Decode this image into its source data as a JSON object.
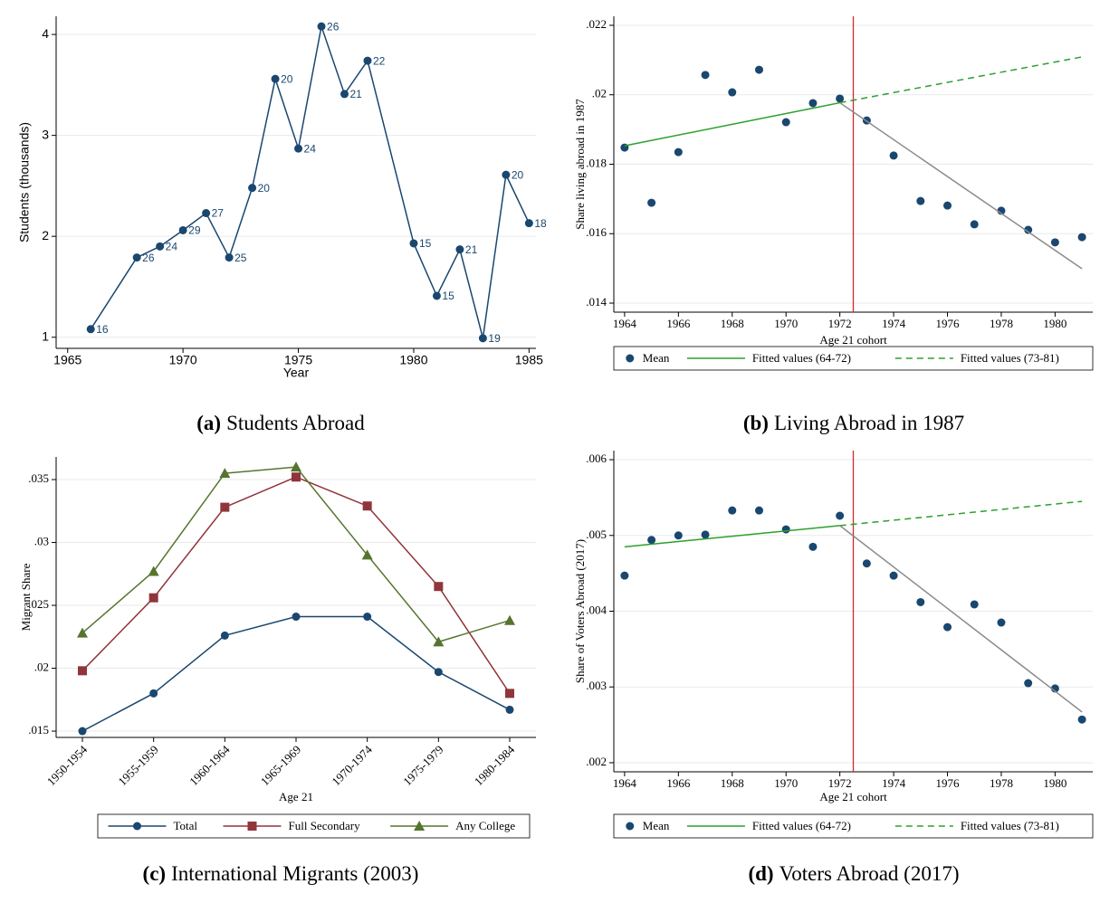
{
  "chart_data": [
    {
      "type": "line",
      "panel_label": "(a)",
      "caption": "Students Abroad",
      "xlabel": "Year",
      "ylabel": "Students (thousands)",
      "xlim": [
        1964.5,
        1985.3
      ],
      "ylim": [
        0.89,
        4.18
      ],
      "xticks": [
        1965,
        1970,
        1975,
        1980,
        1985
      ],
      "yticks": [
        1,
        2,
        3,
        4
      ],
      "grid": true,
      "series": [
        {
          "color": "#1a476f",
          "mode": "lines+markers",
          "marker": "circle",
          "x": [
            1966,
            1968,
            1969,
            1970,
            1971,
            1972,
            1973,
            1974,
            1975,
            1976,
            1977,
            1978,
            1980,
            1981,
            1982,
            1983,
            1984,
            1985
          ],
          "values": [
            1.08,
            1.79,
            1.9,
            2.06,
            2.23,
            1.79,
            2.48,
            3.56,
            2.87,
            4.08,
            3.41,
            3.74,
            1.93,
            1.41,
            1.87,
            0.99,
            2.61,
            2.13
          ],
          "point_labels": [
            16,
            26,
            24,
            29,
            27,
            25,
            20,
            20,
            24,
            26,
            21,
            22,
            15,
            15,
            21,
            19,
            20,
            18
          ]
        }
      ]
    },
    {
      "type": "scatter",
      "panel_label": "(b)",
      "caption": "Living Abroad in 1987",
      "xlabel": "Age 21 cohort",
      "ylabel": "Share living abroad in 1987",
      "xlim": [
        1963.6,
        1981.4
      ],
      "ylim": [
        0.01374,
        0.02226
      ],
      "xticks": [
        1964,
        1966,
        1968,
        1970,
        1972,
        1974,
        1976,
        1978,
        1980
      ],
      "yticks": [
        {
          "value": 0.014,
          "label": ".014"
        },
        {
          "value": 0.016,
          "label": ".016"
        },
        {
          "value": 0.018,
          "label": ".018"
        },
        {
          "value": 0.02,
          "label": ".02"
        },
        {
          "value": 0.022,
          "label": ".022"
        }
      ],
      "grid": true,
      "vline": 1972.5,
      "vline_color": "#d62728",
      "legend": "bottom",
      "series": [
        {
          "name": "Mean",
          "color": "#1a476f",
          "mode": "markers",
          "marker": "circle",
          "x": [
            1964,
            1965,
            1966,
            1967,
            1968,
            1969,
            1970,
            1971,
            1972,
            1973,
            1974,
            1975,
            1976,
            1977,
            1978,
            1979,
            1980,
            1981
          ],
          "values": [
            0.01848,
            0.01689,
            0.01835,
            0.02057,
            0.02007,
            0.02072,
            0.01921,
            0.01976,
            0.01989,
            0.01926,
            0.01825,
            0.01694,
            0.01681,
            0.01627,
            0.01666,
            0.01611,
            0.01575,
            0.0159
          ]
        },
        {
          "name": "Fitted values (64-72)",
          "color": "#2ca02c",
          "mode": "lines",
          "x": [
            1964,
            1972
          ],
          "values": [
            0.01853,
            0.01977
          ]
        },
        {
          "name": "Fitted values (73-81)",
          "color": "#2ca02c",
          "mode": "lines",
          "dash": true,
          "x": [
            1972,
            1981
          ],
          "values": [
            0.01977,
            0.02109
          ]
        },
        {
          "color": "#8c8c8c",
          "mode": "lines",
          "x": [
            1972,
            1981
          ],
          "values": [
            0.01977,
            0.01499
          ]
        }
      ]
    },
    {
      "type": "line",
      "panel_label": "(c)",
      "caption": "International Migrants (2003)",
      "xlabel": "Age 21",
      "ylabel": "Migrant Share",
      "categories": [
        "1950-1954",
        "1955-1959",
        "1960-1964",
        "1965-1969",
        "1970-1974",
        "1975-1979",
        "1980-1984"
      ],
      "ylim": [
        0.0145,
        0.0368
      ],
      "yticks": [
        {
          "value": 0.015,
          "label": ".015"
        },
        {
          "value": 0.02,
          "label": ".02"
        },
        {
          "value": 0.025,
          "label": ".025"
        },
        {
          "value": 0.03,
          "label": ".03"
        },
        {
          "value": 0.035,
          "label": ".035"
        }
      ],
      "grid": true,
      "legend": "bottom",
      "series": [
        {
          "name": "Total",
          "color": "#1a476f",
          "mode": "lines+markers",
          "marker": "circle",
          "values": [
            0.015,
            0.018,
            0.0226,
            0.0241,
            0.0241,
            0.0197,
            0.0167
          ]
        },
        {
          "name": "Full Secondary",
          "color": "#90353b",
          "mode": "lines+markers",
          "marker": "square",
          "values": [
            0.0198,
            0.0256,
            0.0328,
            0.0352,
            0.0329,
            0.0265,
            0.018
          ]
        },
        {
          "name": "Any College",
          "color": "#55752f",
          "mode": "lines+markers",
          "marker": "triangle",
          "values": [
            0.0228,
            0.0277,
            0.0355,
            0.036,
            0.029,
            0.0221,
            0.0238
          ]
        }
      ]
    },
    {
      "type": "scatter",
      "panel_label": "(d)",
      "caption": "Voters Abroad (2017)",
      "xlabel": "Age 21 cohort",
      "ylabel": "Share of Voters Abroad (2017)",
      "xlim": [
        1963.6,
        1981.4
      ],
      "ylim": [
        0.00188,
        0.00612
      ],
      "xticks": [
        1964,
        1966,
        1968,
        1970,
        1972,
        1974,
        1976,
        1978,
        1980
      ],
      "yticks": [
        {
          "value": 0.002,
          "label": ".002"
        },
        {
          "value": 0.003,
          "label": ".003"
        },
        {
          "value": 0.004,
          "label": ".004"
        },
        {
          "value": 0.005,
          "label": ".005"
        },
        {
          "value": 0.006,
          "label": ".006"
        }
      ],
      "grid": true,
      "vline": 1972.5,
      "vline_color": "#d62728",
      "legend": "bottom",
      "series": [
        {
          "name": "Mean",
          "color": "#1a476f",
          "mode": "markers",
          "marker": "circle",
          "x": [
            1964,
            1965,
            1966,
            1967,
            1968,
            1969,
            1970,
            1971,
            1972,
            1973,
            1974,
            1975,
            1976,
            1977,
            1978,
            1979,
            1980,
            1981
          ],
          "values": [
            0.00447,
            0.00494,
            0.005,
            0.00501,
            0.00533,
            0.00533,
            0.00508,
            0.00485,
            0.00526,
            0.00463,
            0.00447,
            0.00412,
            0.00379,
            0.00409,
            0.00385,
            0.00305,
            0.00298,
            0.00257
          ]
        },
        {
          "name": "Fitted values (64-72)",
          "color": "#2ca02c",
          "mode": "lines",
          "x": [
            1964,
            1972
          ],
          "values": [
            0.00485,
            0.00513
          ]
        },
        {
          "name": "Fitted values (73-81)",
          "color": "#2ca02c",
          "mode": "lines",
          "dash": true,
          "x": [
            1972,
            1981
          ],
          "values": [
            0.00513,
            0.00545
          ]
        },
        {
          "color": "#8c8c8c",
          "mode": "lines",
          "x": [
            1972,
            1981
          ],
          "values": [
            0.00513,
            0.00267
          ]
        }
      ]
    }
  ]
}
